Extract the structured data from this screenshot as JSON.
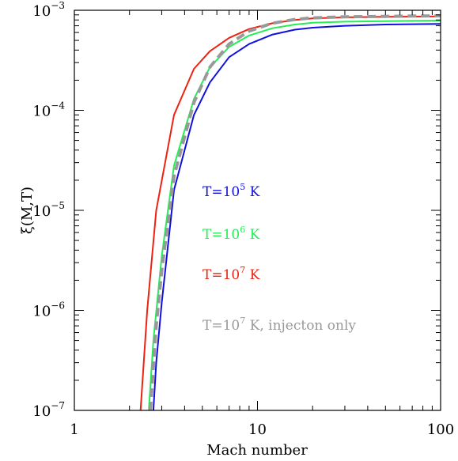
{
  "chart_data": {
    "type": "line",
    "xlabel": "Mach number",
    "ylabel": "ξ(M,T)",
    "xscale": "log",
    "yscale": "log",
    "xlim": [
      1,
      100
    ],
    "ylim": [
      1e-07,
      0.001
    ],
    "grid": false,
    "legend_placement": "center-right",
    "x_ticks": [
      {
        "value": 1,
        "label": "1"
      },
      {
        "value": 10,
        "label": "10"
      },
      {
        "value": 100,
        "label": "100"
      }
    ],
    "y_ticks": [
      {
        "value": 1e-07,
        "base": "10",
        "exp": "−7"
      },
      {
        "value": 1e-06,
        "base": "10",
        "exp": "−6"
      },
      {
        "value": 1e-05,
        "base": "10",
        "exp": "−5"
      },
      {
        "value": 0.0001,
        "base": "10",
        "exp": "−4"
      },
      {
        "value": 0.001,
        "base": "10",
        "exp": "−3"
      }
    ],
    "series": [
      {
        "name": "T=10⁵ K",
        "label_prefix": "T=10",
        "label_exp": "5",
        "label_suffix": " K",
        "color": "#1010dd",
        "dash": false,
        "x": [
          2.7,
          2.8,
          3.0,
          3.5,
          4.5,
          5.5,
          7.0,
          9.0,
          12,
          16,
          20,
          30,
          50,
          100
        ],
        "y": [
          1e-07,
          3e-07,
          1.2e-06,
          1.6e-05,
          9e-05,
          0.00019,
          0.00034,
          0.00046,
          0.00057,
          0.00064,
          0.00067,
          0.0007,
          0.00072,
          0.00073
        ]
      },
      {
        "name": "T=10⁶ K",
        "label_prefix": "T=10",
        "label_exp": "6",
        "label_suffix": " K",
        "color": "#22ee55",
        "dash": false,
        "x": [
          2.55,
          2.7,
          3.0,
          3.5,
          4.5,
          5.5,
          7.0,
          9.0,
          12,
          16,
          20,
          30,
          50,
          100
        ],
        "y": [
          1e-07,
          5e-07,
          3.5e-06,
          2.8e-05,
          0.00013,
          0.00027,
          0.00043,
          0.00056,
          0.00066,
          0.00072,
          0.00075,
          0.00077,
          0.00078,
          0.00079
        ]
      },
      {
        "name": "T=10⁷ K",
        "label_prefix": "T=10",
        "label_exp": "7",
        "label_suffix": " K",
        "color": "#ee2211",
        "dash": false,
        "x": [
          2.3,
          2.5,
          2.8,
          3.5,
          4.5,
          5.5,
          7.0,
          9.0,
          12,
          16,
          20,
          30,
          50,
          100
        ],
        "y": [
          1e-07,
          1e-06,
          1e-05,
          9e-05,
          0.00026,
          0.00039,
          0.00053,
          0.00065,
          0.00074,
          0.0008,
          0.00083,
          0.00085,
          0.00086,
          0.00087
        ]
      },
      {
        "name": "T=10⁷ K, injecton only",
        "label_prefix": "T=10",
        "label_exp": "7",
        "label_suffix": " K, injecton only",
        "color": "#999999",
        "dash": true,
        "x": [
          2.6,
          2.8,
          3.0,
          3.5,
          4.5,
          5.5,
          7.0,
          9.0,
          12,
          16,
          20,
          30,
          50,
          100
        ],
        "y": [
          1e-07,
          7e-07,
          2.5e-06,
          2.2e-05,
          0.00012,
          0.00027,
          0.00046,
          0.00062,
          0.00074,
          0.00081,
          0.00084,
          0.00086,
          0.00087,
          0.00088
        ]
      }
    ]
  }
}
